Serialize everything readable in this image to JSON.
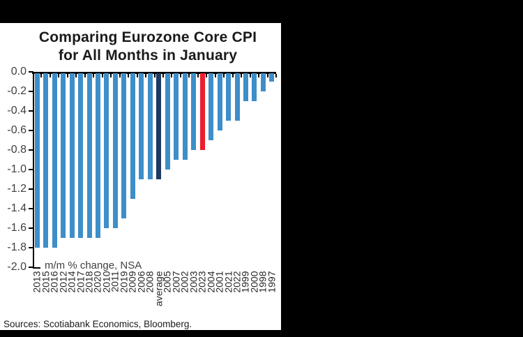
{
  "page": {
    "background_color": "#000000",
    "panel_color": "#ffffff"
  },
  "chart_data": {
    "type": "bar",
    "title_line1": "Comparing Eurozone Core CPI",
    "title_line2": "for All Months in January",
    "note": "m/m % change, NSA",
    "sources": "Sources: Scotiabank Economics, Bloomberg.",
    "ylim": [
      -2.0,
      0.0
    ],
    "ytick_labels": [
      "0.0",
      "-0.2",
      "-0.4",
      "-0.6",
      "-0.8",
      "-1.0",
      "-1.2",
      "-1.4",
      "-1.6",
      "-1.8",
      "-2.0"
    ],
    "categories": [
      "2013",
      "2015",
      "2016",
      "2012",
      "2014",
      "2017",
      "2018",
      "2020",
      "2010",
      "2011",
      "2019",
      "2009",
      "2006",
      "2008",
      "average",
      "2005",
      "2007",
      "2002",
      "2003",
      "2023",
      "2004",
      "2001",
      "2021",
      "2022",
      "1999",
      "2000",
      "1998",
      "1997"
    ],
    "values": [
      -1.8,
      -1.8,
      -1.8,
      -1.7,
      -1.7,
      -1.7,
      -1.7,
      -1.7,
      -1.6,
      -1.6,
      -1.5,
      -1.3,
      -1.1,
      -1.1,
      -1.1,
      -1.0,
      -0.9,
      -0.9,
      -0.8,
      -0.8,
      -0.7,
      -0.6,
      -0.5,
      -0.5,
      -0.3,
      -0.3,
      -0.2,
      -0.1
    ],
    "colors": {
      "bar": "#3D8EC9",
      "average_bar": "#1F3864",
      "highlight_bar": "#EC1C2E",
      "axis": "#000000"
    },
    "highlighted_categories": {
      "average": "navy average bar",
      "2023": "red current-year bar"
    },
    "legend": "none",
    "x_labels_rotated": true,
    "sort_order": "most negative to least negative"
  }
}
